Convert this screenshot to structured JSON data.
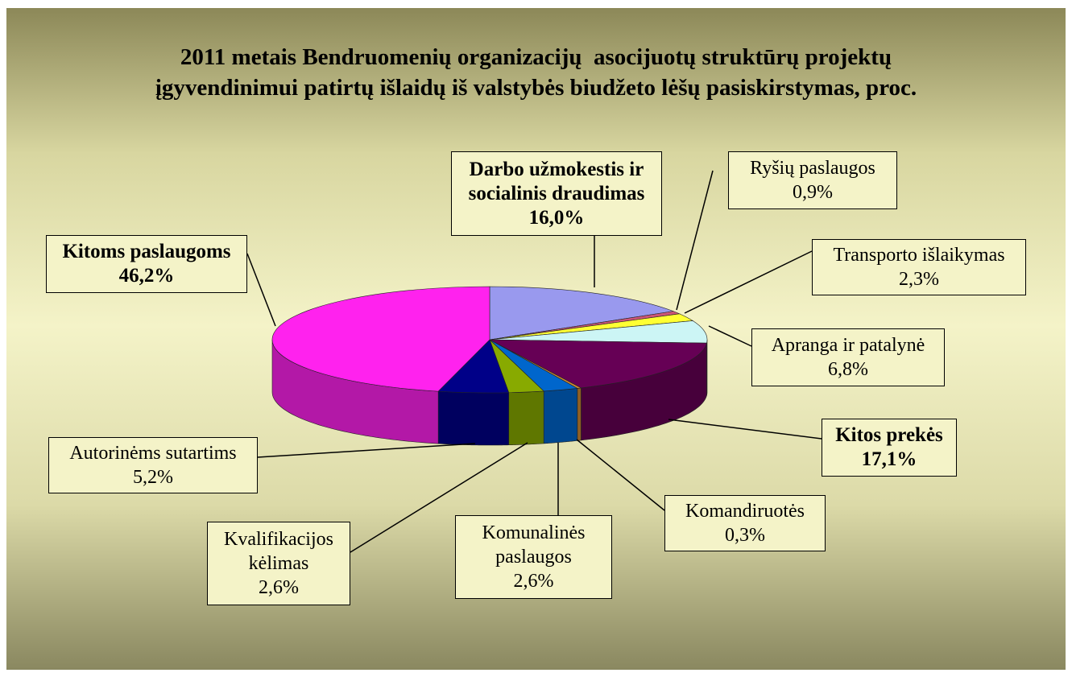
{
  "chart_data": {
    "type": "pie3d",
    "title": [
      "2011 metais Bendruomenių organizacijų  asocijuotų struktūrų projektų",
      "įgyvendinimui patirtų išlaidų iš valstybės biudžeto lėšų pasiskirstymas, proc."
    ],
    "categories": [
      "Darbo užmokestis ir socialinis draudimas",
      "Ryšių paslaugos",
      "Transporto išlaikymas",
      "Apranga ir patalynė",
      "Kitos prekės",
      "Komandiruotės",
      "Komunalinės paslaugos",
      "Kvalifikacijos kėlimas",
      "Autorinėms sutartims",
      "Kitoms paslaugoms"
    ],
    "values": [
      16.0,
      0.9,
      2.3,
      6.8,
      17.1,
      0.3,
      2.6,
      2.6,
      5.2,
      46.2
    ],
    "value_labels": [
      "16,0%",
      "0,9%",
      "2,3%",
      "6,8%",
      "17,1%",
      "0,3%",
      "2,6%",
      "2,6%",
      "5,2%",
      "46,2%"
    ],
    "colors": [
      "#9999ee",
      "#cc5577",
      "#ffff33",
      "#ccf5f5",
      "#660055",
      "#cc8833",
      "#0066cc",
      "#88aa00",
      "#000088",
      "#ff22ee"
    ]
  }
}
